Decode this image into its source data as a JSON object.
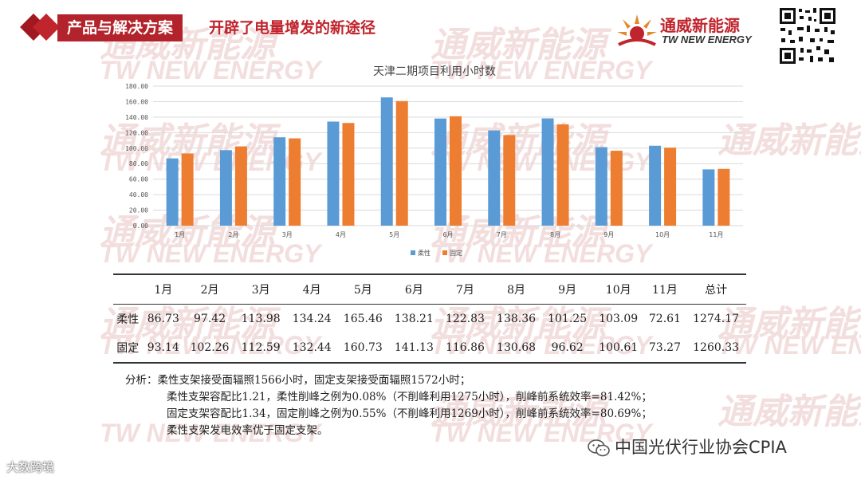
{
  "header": {
    "tag_label": "产品与解决方案",
    "subtitle": "开辟了电量增发的新途径"
  },
  "logo": {
    "name_cn": "通威新能源",
    "name_en": "TW NEW ENERGY"
  },
  "watermark": {
    "text_cn": "通威新能源",
    "text_en": "TW NEW ENERGY"
  },
  "chart_data": {
    "type": "bar",
    "title": "天津二期项目利用小时数",
    "categories": [
      "1月",
      "2月",
      "3月",
      "4月",
      "5月",
      "6月",
      "7月",
      "8月",
      "9月",
      "10月",
      "11月"
    ],
    "series": [
      {
        "name": "柔性",
        "color": "#5b9bd5",
        "values": [
          86.73,
          97.42,
          113.98,
          134.24,
          165.46,
          138.21,
          122.83,
          138.36,
          101.25,
          103.09,
          72.61
        ]
      },
      {
        "name": "固定",
        "color": "#ed7d31",
        "values": [
          93.14,
          102.26,
          112.59,
          132.44,
          160.73,
          141.13,
          116.86,
          130.68,
          96.62,
          100.61,
          73.27
        ]
      }
    ],
    "ylim": [
      0,
      180
    ],
    "yticks": [
      "0.00",
      "20.00",
      "40.00",
      "60.00",
      "80.00",
      "100.00",
      "120.00",
      "140.00",
      "160.00",
      "180.00"
    ],
    "grid": true,
    "legend_position": "bottom"
  },
  "table": {
    "headers": [
      "",
      "1月",
      "2月",
      "3月",
      "4月",
      "5月",
      "6月",
      "7月",
      "8月",
      "9月",
      "10月",
      "11月",
      "总计"
    ],
    "rows": [
      [
        "柔性",
        "86.73",
        "97.42",
        "113.98",
        "134.24",
        "165.46",
        "138.21",
        "122.83",
        "138.36",
        "101.25",
        "103.09",
        "72.61",
        "1274.17"
      ],
      [
        "固定",
        "93.14",
        "102.26",
        "112.59",
        "132.44",
        "160.73",
        "141.13",
        "116.86",
        "130.68",
        "96.62",
        "100.61",
        "73.27",
        "1260.33"
      ]
    ]
  },
  "analysis": {
    "line1": "分析：柔性支架接受面辐照1566小时，固定支架接受面辐照1572小时；",
    "line2": "柔性支架容配比1.21，柔性削峰之例为0.08%（不削峰利用1275小时），削峰前系统效率=81.42%；",
    "line3": "固定支架容配比1.34，固定削峰之例为0.55%（不削峰利用1269小时），削峰前系统效率=80.69%；",
    "line4": "柔性支架发电效率优于固定支架。"
  },
  "footer": {
    "left": "大数跨境",
    "right": "中国光伏行业协会CPIA"
  },
  "colors": {
    "brand_red": "#c0242c",
    "series_flexible": "#5b9bd5",
    "series_fixed": "#ed7d31"
  }
}
